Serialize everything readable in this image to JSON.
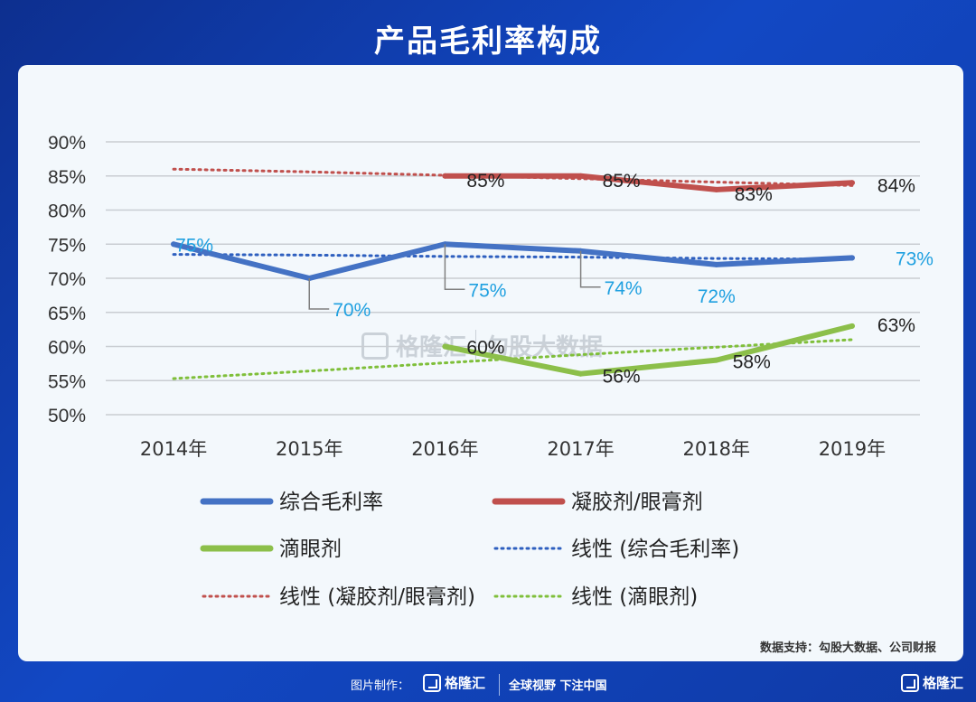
{
  "page": {
    "title": "产品毛利率构成",
    "source": "数据支持：勾股大数据、公司财报",
    "footer_label": "图片制作：",
    "footer_logo": "格隆汇",
    "footer_slogan": "全球视野 下注中国",
    "corner_logo": "格隆汇",
    "watermark_left": "格隆汇",
    "watermark_right": "勾股大数据"
  },
  "chart_data": {
    "type": "line",
    "title": "产品毛利率构成",
    "xlabel": "",
    "ylabel": "",
    "categories": [
      "2014年",
      "2015年",
      "2016年",
      "2017年",
      "2018年",
      "2019年"
    ],
    "ylim": [
      50,
      90
    ],
    "yticks": [
      50,
      55,
      60,
      65,
      70,
      75,
      80,
      85,
      90
    ],
    "y_tick_labels": [
      "50%",
      "55%",
      "60%",
      "65%",
      "70%",
      "75%",
      "80%",
      "85%",
      "90%"
    ],
    "grid": true,
    "legend_position": "bottom",
    "series": [
      {
        "name": "综合毛利率",
        "style": "solid",
        "color": "#4472c4",
        "values": [
          75,
          70,
          75,
          74,
          72,
          73
        ],
        "labels": [
          "75%",
          "70%",
          "75%",
          "74%",
          "72%",
          "73%"
        ],
        "label_color": "#1fa0e0"
      },
      {
        "name": "凝胶剂/眼膏剂",
        "style": "solid",
        "color": "#c0504d",
        "values": [
          null,
          null,
          85,
          85,
          83,
          84
        ],
        "labels": [
          "",
          "",
          "85%",
          "85%",
          "83%",
          "84%"
        ],
        "label_color": "#222222"
      },
      {
        "name": "滴眼剂",
        "style": "solid",
        "color": "#8cbf4a",
        "values": [
          null,
          null,
          60,
          56,
          58,
          63
        ],
        "labels": [
          "",
          "",
          "60%",
          "56%",
          "58%",
          "63%"
        ],
        "label_color": "#222222"
      },
      {
        "name": "线性 (综合毛利率)",
        "style": "dotted",
        "color": "#2e5fbf",
        "values": [
          73.5,
          73.4,
          73.2,
          73.1,
          72.9,
          72.8
        ]
      },
      {
        "name": "线性 (凝胶剂/眼膏剂)",
        "style": "dotted",
        "color": "#c0504d",
        "values": [
          86,
          85.6,
          85.1,
          84.6,
          84.1,
          83.6
        ]
      },
      {
        "name": "线性 (滴眼剂)",
        "style": "dotted",
        "color": "#7fbf3a",
        "values": [
          55.3,
          56.4,
          57.6,
          58.8,
          59.9,
          61
        ]
      }
    ]
  }
}
